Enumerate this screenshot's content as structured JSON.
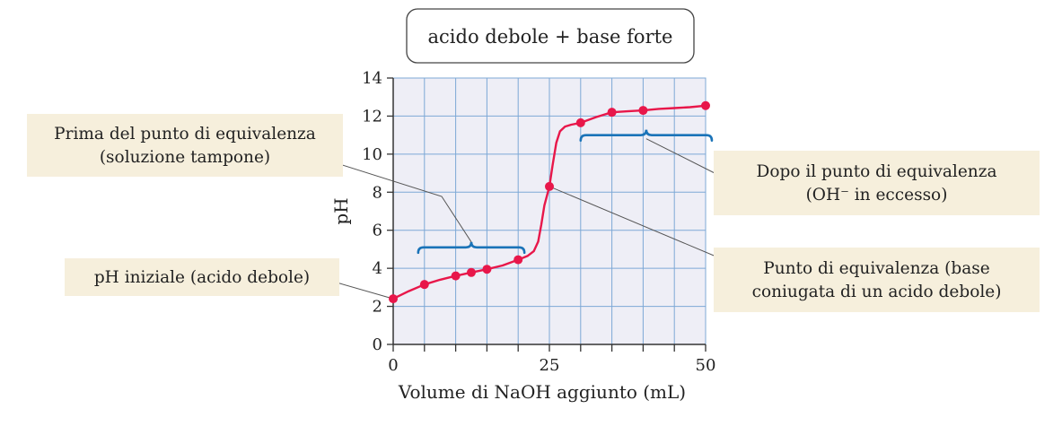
{
  "chart_data": {
    "type": "line",
    "title": "acido debole + base forte",
    "xlabel": "Volume di NaOH aggiunto (mL)",
    "ylabel": "pH",
    "xlim": [
      0,
      50
    ],
    "ylim": [
      0,
      14
    ],
    "x_ticks": [
      0,
      25,
      50
    ],
    "y_ticks": [
      0,
      2,
      4,
      6,
      8,
      10,
      12,
      14
    ],
    "grid": true,
    "series": [
      {
        "color": "#e8174a",
        "curve": [
          [
            0,
            2.4
          ],
          [
            2.5,
            2.8
          ],
          [
            5,
            3.15
          ],
          [
            7.5,
            3.4
          ],
          [
            10,
            3.6
          ],
          [
            12.5,
            3.78
          ],
          [
            15,
            3.95
          ],
          [
            17.5,
            4.15
          ],
          [
            20,
            4.45
          ],
          [
            21.5,
            4.65
          ],
          [
            22.5,
            4.9
          ],
          [
            23.2,
            5.4
          ],
          [
            23.7,
            6.3
          ],
          [
            24.2,
            7.3
          ],
          [
            25,
            8.3
          ],
          [
            25.5,
            9.4
          ],
          [
            26.1,
            10.6
          ],
          [
            26.7,
            11.2
          ],
          [
            27.5,
            11.45
          ],
          [
            28.5,
            11.55
          ],
          [
            30,
            11.65
          ],
          [
            32.5,
            11.95
          ],
          [
            35,
            12.2
          ],
          [
            37.5,
            12.25
          ],
          [
            40,
            12.3
          ],
          [
            42.5,
            12.38
          ],
          [
            45,
            12.42
          ],
          [
            47.5,
            12.47
          ],
          [
            50,
            12.55
          ]
        ],
        "points": [
          [
            0,
            2.4
          ],
          [
            5,
            3.15
          ],
          [
            10,
            3.6
          ],
          [
            12.5,
            3.78
          ],
          [
            15,
            3.95
          ],
          [
            20,
            4.45
          ],
          [
            25,
            8.3
          ],
          [
            30,
            11.65
          ],
          [
            35,
            12.2
          ],
          [
            40,
            12.3
          ],
          [
            50,
            12.55
          ]
        ]
      }
    ],
    "brackets": [
      {
        "x_from": 4,
        "x_to": 21,
        "y": 5.1,
        "color": "#1a73b8"
      },
      {
        "x_from": 30,
        "x_to": 51,
        "y": 11.0,
        "color": "#1a73b8"
      }
    ],
    "annotations": [
      {
        "lines": [
          "Prima del punto di equivalenza",
          "(soluzione tampone)"
        ],
        "target": [
          12.5,
          5.1
        ]
      },
      {
        "lines": [
          "pH iniziale (acido debole)"
        ],
        "target": [
          0,
          2.4
        ]
      },
      {
        "lines": [
          "Dopo il punto di equivalenza",
          "(OH⁻ in eccesso)"
        ],
        "target": [
          40.5,
          11.0
        ]
      },
      {
        "lines": [
          "Punto di equivalenza (base",
          "coniugata di un acido debole)"
        ],
        "target": [
          25,
          8.3
        ]
      }
    ],
    "colors": {
      "plot_background": "#eeeef6",
      "grid": "#7da8d6",
      "callout_background": "#f6efdc",
      "leader_line": "#555555"
    }
  }
}
